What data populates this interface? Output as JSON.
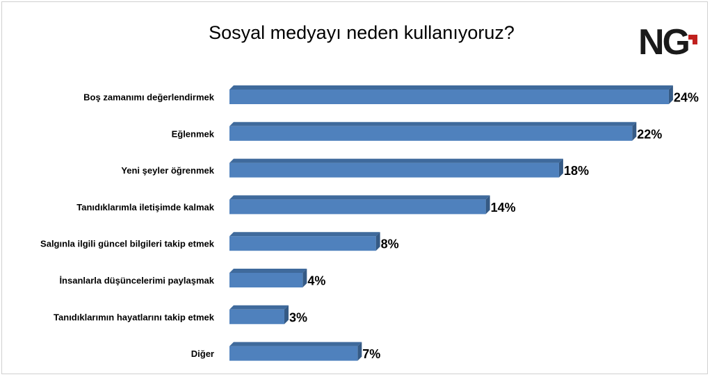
{
  "chart_data": {
    "type": "bar",
    "orientation": "horizontal",
    "title": "Sosyal medyayı neden kullanıyoruz?",
    "categories": [
      "Boş zamanımı değerlendirmek",
      "Eğlenmek",
      "Yeni şeyler öğrenmek",
      "Tanıdıklarımla iletişimde kalmak",
      "Salgınla ilgili güncel bilgileri takip etmek",
      "İnsanlarla düşüncelerimi paylaşmak",
      "Tanıdıklarımın hayatlarını takip etmek",
      "Diğer"
    ],
    "values": [
      24,
      22,
      18,
      14,
      8,
      4,
      3,
      7
    ],
    "data_labels": [
      "24%",
      "22%",
      "18%",
      "14%",
      "8%",
      "4%",
      "3%",
      "7%"
    ],
    "unit": "%",
    "grid": false,
    "bar_style": "3d",
    "colors": {
      "bar": "#4f81bd",
      "bar_top": "#3f6a9c",
      "bar_side": "#355a85",
      "text": "#000000"
    }
  },
  "logo": {
    "text": "NG",
    "colors": {
      "letters": "#1a1a1a",
      "accent": "#c0201e"
    }
  }
}
